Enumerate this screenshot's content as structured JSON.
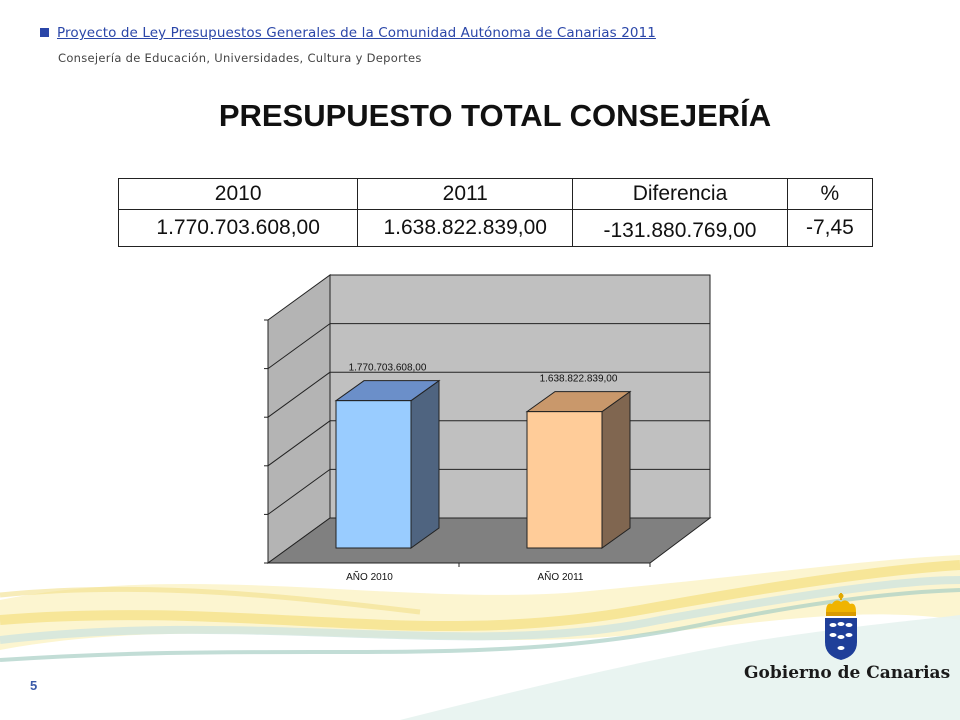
{
  "header": {
    "title": "Proyecto de Ley Presupuestos Generales de la Comunidad Autónoma de Canarias 2011",
    "subtitle": "Consejería de Educación, Universidades, Cultura y Deportes"
  },
  "main_title": "PRESUPUESTO TOTAL CONSEJERÍA",
  "table": {
    "headers": [
      "2010",
      "2011",
      "Diferencia",
      "%"
    ],
    "values": [
      "1.770.703.608,00",
      "1.638.822.839,00",
      "-131.880.769,00",
      "-7,45"
    ]
  },
  "chart_data": {
    "type": "bar",
    "categories": [
      "AÑO 2010",
      "AÑO 2011"
    ],
    "values": [
      1770703608.0,
      1638822839.0
    ],
    "value_labels": [
      "1.770.703.608,00",
      "1.638.822.839,00"
    ],
    "colors": [
      "#99ccff",
      "#ffcc99"
    ],
    "side_colors": [
      "#4f6480",
      "#806650"
    ],
    "title": "",
    "xlabel": "",
    "ylabel": "",
    "ylim": [
      0,
      2500000000
    ],
    "grid": true,
    "three_d": true,
    "legend": "none"
  },
  "logo": {
    "text": "Gobierno de Canarias"
  },
  "page_number": "5"
}
